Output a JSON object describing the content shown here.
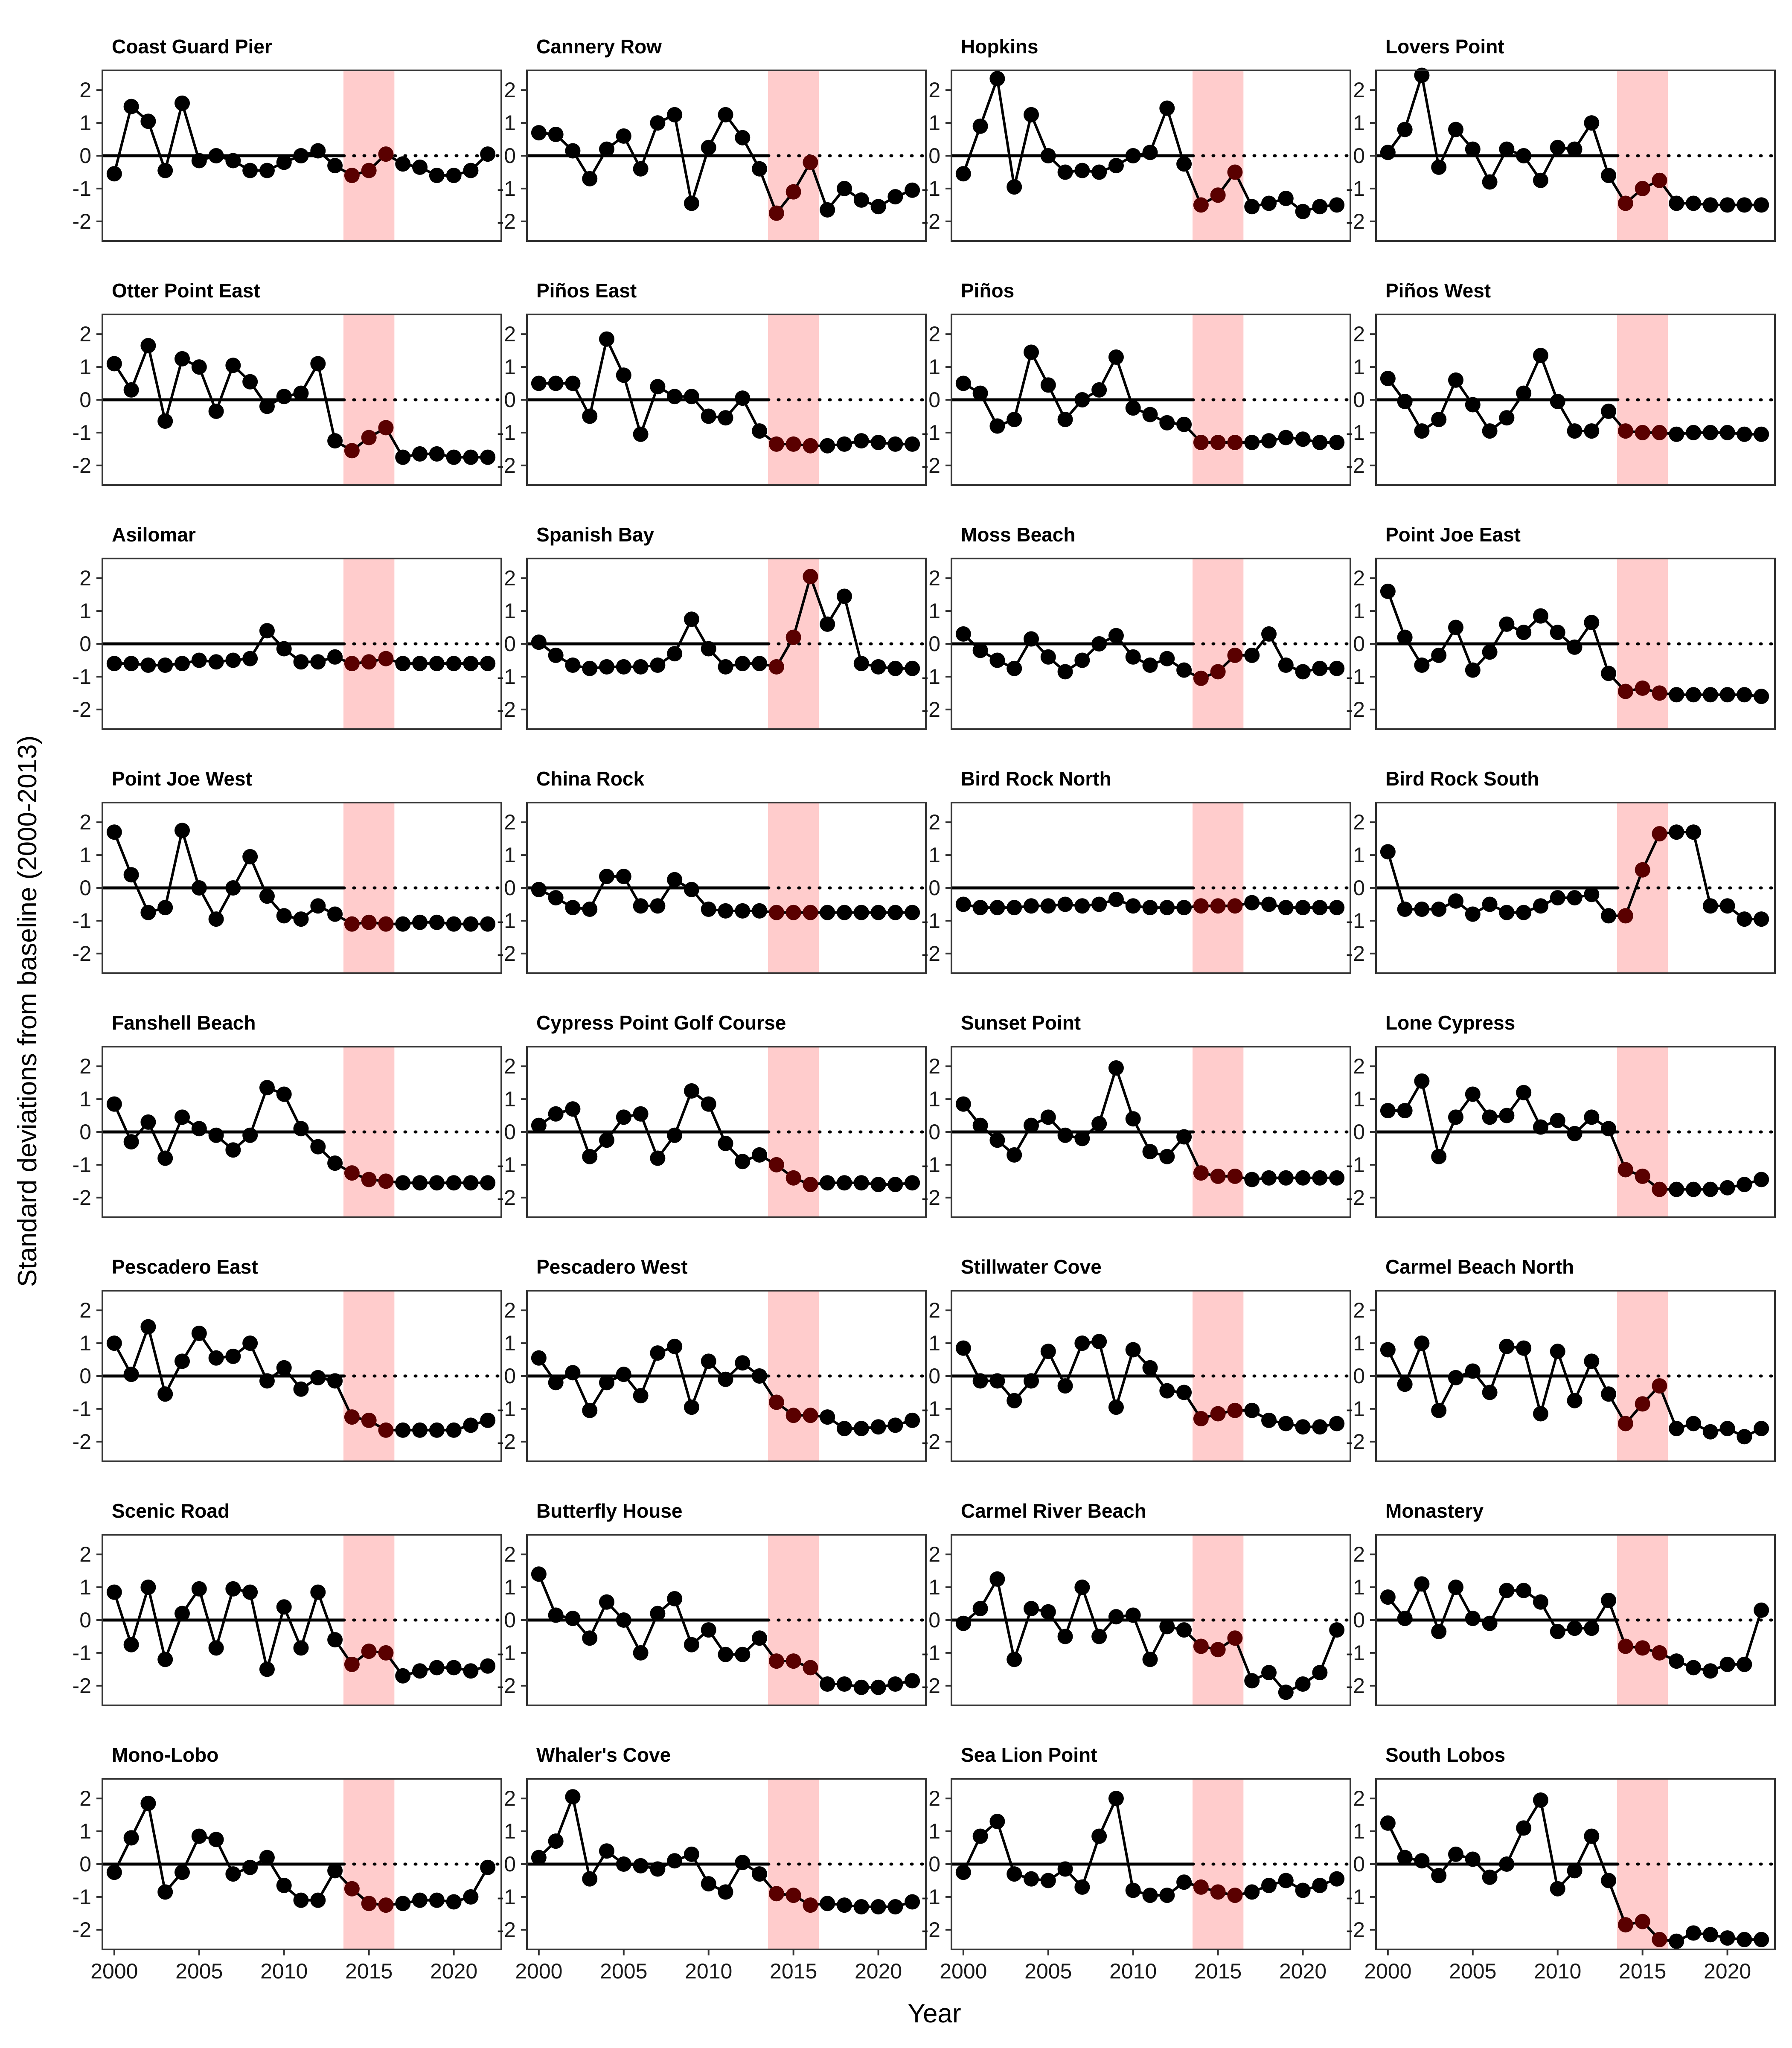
{
  "chart_data": {
    "type": "line",
    "xlabel": "Year",
    "ylabel": "Standard deviations from baseline (2000-2013)",
    "x_ticks": [
      2000,
      2005,
      2010,
      2015,
      2020
    ],
    "x_tick_labels": [
      "2000",
      "2005",
      "2010",
      "2015",
      "2020"
    ],
    "y_ticks": [
      -2,
      -1,
      0,
      1,
      2
    ],
    "y_tick_labels": [
      "-2",
      "-1",
      "0",
      "1",
      "2"
    ],
    "xlim": [
      1999.3,
      2022.8
    ],
    "ylim": [
      -2.6,
      2.6
    ],
    "years": [
      2000,
      2001,
      2002,
      2003,
      2004,
      2005,
      2006,
      2007,
      2008,
      2009,
      2010,
      2011,
      2012,
      2013,
      2014,
      2015,
      2016,
      2017,
      2018,
      2019,
      2020,
      2021,
      2022
    ],
    "highlight_span": [
      2013.5,
      2016.5
    ],
    "highlight_color": "#ffcccc",
    "point_color": "#000000",
    "highlight_point_color": "#5a0000",
    "baseline_value": 0,
    "baseline_solid_until": 2013.5,
    "grid": false,
    "layout": "8 rows x 4 columns facets",
    "series": [
      {
        "name": "Coast Guard Pier",
        "values": [
          -0.55,
          1.5,
          1.05,
          -0.45,
          1.6,
          -0.15,
          0.0,
          -0.15,
          -0.45,
          -0.45,
          -0.2,
          0.0,
          0.15,
          -0.3,
          -0.6,
          -0.45,
          0.05,
          -0.25,
          -0.35,
          -0.6,
          -0.6,
          -0.45,
          0.05
        ]
      },
      {
        "name": "Cannery Row",
        "values": [
          0.7,
          0.65,
          0.15,
          -0.7,
          0.2,
          0.6,
          -0.4,
          1.0,
          1.25,
          -1.45,
          0.25,
          1.25,
          0.55,
          -0.4,
          -1.75,
          -1.1,
          -0.2,
          -1.65,
          -1.0,
          -1.35,
          -1.55,
          -1.25,
          -1.05
        ]
      },
      {
        "name": "Hopkins",
        "values": [
          -0.55,
          0.9,
          2.35,
          -0.95,
          1.25,
          0.0,
          -0.5,
          -0.45,
          -0.5,
          -0.3,
          0.0,
          0.1,
          1.45,
          -0.25,
          -1.5,
          -1.2,
          -0.5,
          -1.55,
          -1.45,
          -1.3,
          -1.7,
          -1.55,
          -1.5
        ]
      },
      {
        "name": "Lovers Point",
        "values": [
          0.1,
          0.8,
          2.45,
          -0.35,
          0.8,
          0.2,
          -0.8,
          0.2,
          0.0,
          -0.75,
          0.25,
          0.2,
          1.0,
          -0.6,
          -1.45,
          -1.0,
          -0.75,
          -1.45,
          -1.45,
          -1.5,
          -1.5,
          -1.5,
          -1.5
        ]
      },
      {
        "name": "Otter Point East",
        "values": [
          1.1,
          0.3,
          1.65,
          -0.65,
          1.25,
          1.0,
          -0.35,
          1.05,
          0.55,
          -0.2,
          0.1,
          0.2,
          1.1,
          -1.25,
          -1.55,
          -1.15,
          -0.85,
          -1.75,
          -1.65,
          -1.65,
          -1.75,
          -1.75,
          -1.75
        ]
      },
      {
        "name": "Piños East",
        "values": [
          0.5,
          0.5,
          0.5,
          -0.5,
          1.85,
          0.75,
          -1.05,
          0.4,
          0.1,
          0.1,
          -0.5,
          -0.55,
          0.05,
          -0.95,
          -1.35,
          -1.35,
          -1.4,
          -1.4,
          -1.35,
          -1.25,
          -1.3,
          -1.35,
          -1.35
        ]
      },
      {
        "name": "Piños",
        "values": [
          0.5,
          0.2,
          -0.8,
          -0.6,
          1.45,
          0.45,
          -0.6,
          0.0,
          0.3,
          1.3,
          -0.25,
          -0.45,
          -0.7,
          -0.75,
          -1.3,
          -1.3,
          -1.3,
          -1.3,
          -1.25,
          -1.15,
          -1.2,
          -1.3,
          -1.3
        ]
      },
      {
        "name": "Piños West",
        "values": [
          0.65,
          -0.05,
          -0.95,
          -0.6,
          0.6,
          -0.15,
          -0.95,
          -0.55,
          0.2,
          1.35,
          -0.05,
          -0.95,
          -0.95,
          -0.35,
          -0.95,
          -1.0,
          -1.0,
          -1.05,
          -1.0,
          -1.0,
          -1.0,
          -1.05,
          -1.05
        ]
      },
      {
        "name": "Asilomar",
        "values": [
          -0.6,
          -0.6,
          -0.65,
          -0.65,
          -0.6,
          -0.5,
          -0.55,
          -0.5,
          -0.45,
          0.4,
          -0.15,
          -0.55,
          -0.55,
          -0.4,
          -0.6,
          -0.55,
          -0.45,
          -0.6,
          -0.6,
          -0.6,
          -0.6,
          -0.6,
          -0.6
        ]
      },
      {
        "name": "Spanish Bay",
        "values": [
          0.05,
          -0.35,
          -0.65,
          -0.75,
          -0.7,
          -0.7,
          -0.7,
          -0.65,
          -0.3,
          0.75,
          -0.15,
          -0.7,
          -0.6,
          -0.6,
          -0.7,
          0.2,
          2.05,
          0.6,
          1.45,
          -0.6,
          -0.7,
          -0.75,
          -0.75
        ]
      },
      {
        "name": "Moss Beach",
        "values": [
          0.3,
          -0.2,
          -0.5,
          -0.75,
          0.15,
          -0.4,
          -0.85,
          -0.5,
          0.0,
          0.25,
          -0.4,
          -0.65,
          -0.45,
          -0.8,
          -1.05,
          -0.85,
          -0.35,
          -0.35,
          0.3,
          -0.65,
          -0.85,
          -0.75,
          -0.75
        ]
      },
      {
        "name": "Point Joe East",
        "values": [
          1.6,
          0.2,
          -0.65,
          -0.35,
          0.5,
          -0.8,
          -0.25,
          0.6,
          0.35,
          0.85,
          0.35,
          -0.1,
          0.65,
          -0.9,
          -1.45,
          -1.35,
          -1.5,
          -1.55,
          -1.55,
          -1.55,
          -1.55,
          -1.55,
          -1.6
        ]
      },
      {
        "name": "Point Joe West",
        "values": [
          1.7,
          0.4,
          -0.75,
          -0.6,
          1.75,
          0.0,
          -0.95,
          0.0,
          0.95,
          -0.25,
          -0.85,
          -0.95,
          -0.55,
          -0.8,
          -1.1,
          -1.05,
          -1.1,
          -1.1,
          -1.05,
          -1.05,
          -1.1,
          -1.1,
          -1.1
        ]
      },
      {
        "name": "China Rock",
        "values": [
          -0.05,
          -0.3,
          -0.6,
          -0.65,
          0.35,
          0.35,
          -0.55,
          -0.55,
          0.25,
          -0.05,
          -0.65,
          -0.7,
          -0.7,
          -0.7,
          -0.75,
          -0.75,
          -0.75,
          -0.75,
          -0.75,
          -0.75,
          -0.75,
          -0.75,
          -0.75
        ]
      },
      {
        "name": "Bird Rock North",
        "values": [
          -0.5,
          -0.6,
          -0.6,
          -0.6,
          -0.55,
          -0.55,
          -0.5,
          -0.55,
          -0.5,
          -0.35,
          -0.55,
          -0.6,
          -0.6,
          -0.6,
          -0.55,
          -0.55,
          -0.55,
          -0.45,
          -0.5,
          -0.6,
          -0.6,
          -0.6,
          -0.6
        ]
      },
      {
        "name": "Bird Rock South",
        "values": [
          1.1,
          -0.65,
          -0.65,
          -0.65,
          -0.4,
          -0.8,
          -0.5,
          -0.75,
          -0.75,
          -0.55,
          -0.3,
          -0.3,
          -0.2,
          -0.85,
          -0.85,
          0.55,
          1.65,
          1.7,
          1.7,
          -0.55,
          -0.55,
          -0.95,
          -0.95
        ]
      },
      {
        "name": "Fanshell Beach",
        "values": [
          0.85,
          -0.3,
          0.3,
          -0.8,
          0.45,
          0.1,
          -0.1,
          -0.55,
          -0.1,
          1.35,
          1.15,
          0.1,
          -0.45,
          -0.95,
          -1.25,
          -1.45,
          -1.5,
          -1.55,
          -1.55,
          -1.55,
          -1.55,
          -1.55,
          -1.55
        ]
      },
      {
        "name": "Cypress Point Golf Course",
        "values": [
          0.2,
          0.55,
          0.7,
          -0.75,
          -0.25,
          0.45,
          0.55,
          -0.8,
          -0.1,
          1.25,
          0.85,
          -0.35,
          -0.9,
          -0.7,
          -1.0,
          -1.4,
          -1.6,
          -1.55,
          -1.55,
          -1.55,
          -1.6,
          -1.6,
          -1.55
        ]
      },
      {
        "name": "Sunset Point",
        "values": [
          0.85,
          0.2,
          -0.25,
          -0.7,
          0.2,
          0.45,
          -0.1,
          -0.2,
          0.25,
          1.95,
          0.4,
          -0.6,
          -0.75,
          -0.15,
          -1.25,
          -1.35,
          -1.35,
          -1.45,
          -1.4,
          -1.4,
          -1.4,
          -1.4,
          -1.4
        ]
      },
      {
        "name": "Lone Cypress",
        "values": [
          0.65,
          0.65,
          1.55,
          -0.75,
          0.45,
          1.15,
          0.45,
          0.5,
          1.2,
          0.15,
          0.35,
          -0.05,
          0.45,
          0.1,
          -1.15,
          -1.35,
          -1.75,
          -1.75,
          -1.75,
          -1.75,
          -1.7,
          -1.6,
          -1.45
        ]
      },
      {
        "name": "Pescadero East",
        "values": [
          1.0,
          0.05,
          1.5,
          -0.55,
          0.45,
          1.3,
          0.55,
          0.6,
          1.0,
          -0.15,
          0.25,
          -0.4,
          -0.05,
          -0.15,
          -1.25,
          -1.35,
          -1.65,
          -1.65,
          -1.65,
          -1.65,
          -1.65,
          -1.5,
          -1.35
        ]
      },
      {
        "name": "Pescadero West",
        "values": [
          0.55,
          -0.2,
          0.1,
          -1.05,
          -0.2,
          0.05,
          -0.6,
          0.7,
          0.9,
          -0.95,
          0.45,
          -0.1,
          0.4,
          0.0,
          -0.8,
          -1.2,
          -1.2,
          -1.25,
          -1.6,
          -1.6,
          -1.55,
          -1.5,
          -1.35
        ]
      },
      {
        "name": "Stillwater Cove",
        "values": [
          0.85,
          -0.15,
          -0.15,
          -0.75,
          -0.15,
          0.75,
          -0.3,
          1.0,
          1.05,
          -0.95,
          0.8,
          0.25,
          -0.45,
          -0.5,
          -1.3,
          -1.15,
          -1.05,
          -1.05,
          -1.35,
          -1.45,
          -1.55,
          -1.55,
          -1.45
        ]
      },
      {
        "name": "Carmel Beach North",
        "values": [
          0.8,
          -0.25,
          1.0,
          -1.05,
          -0.05,
          0.15,
          -0.5,
          0.9,
          0.85,
          -1.15,
          0.75,
          -0.75,
          0.45,
          -0.55,
          -1.45,
          -0.85,
          -0.3,
          -1.6,
          -1.45,
          -1.7,
          -1.6,
          -1.85,
          -1.6
        ]
      },
      {
        "name": "Scenic Road",
        "values": [
          0.85,
          -0.75,
          1.0,
          -1.2,
          0.2,
          0.95,
          -0.85,
          0.95,
          0.85,
          -1.5,
          0.4,
          -0.85,
          0.85,
          -0.6,
          -1.35,
          -0.95,
          -1.0,
          -1.7,
          -1.55,
          -1.45,
          -1.45,
          -1.55,
          -1.4
        ]
      },
      {
        "name": "Butterfly House",
        "values": [
          1.4,
          0.15,
          0.05,
          -0.55,
          0.55,
          0.0,
          -1.0,
          0.2,
          0.65,
          -0.75,
          -0.3,
          -1.05,
          -1.05,
          -0.55,
          -1.25,
          -1.25,
          -1.45,
          -1.95,
          -1.95,
          -2.05,
          -2.05,
          -1.95,
          -1.85
        ]
      },
      {
        "name": "Carmel River Beach",
        "values": [
          -0.1,
          0.35,
          1.25,
          -1.2,
          0.35,
          0.25,
          -0.5,
          1.0,
          -0.5,
          0.1,
          0.15,
          -1.2,
          -0.2,
          -0.3,
          -0.8,
          -0.9,
          -0.55,
          -1.85,
          -1.6,
          -2.2,
          -1.95,
          -1.6,
          -0.3
        ]
      },
      {
        "name": "Monastery",
        "values": [
          0.7,
          0.05,
          1.1,
          -0.35,
          1.0,
          0.05,
          -0.1,
          0.9,
          0.9,
          0.55,
          -0.35,
          -0.25,
          -0.25,
          0.6,
          -0.8,
          -0.85,
          -1.0,
          -1.25,
          -1.45,
          -1.55,
          -1.35,
          -1.35,
          0.3
        ]
      },
      {
        "name": "Mono-Lobo",
        "values": [
          -0.25,
          0.8,
          1.85,
          -0.85,
          -0.25,
          0.85,
          0.75,
          -0.3,
          -0.1,
          0.2,
          -0.65,
          -1.1,
          -1.1,
          -0.2,
          -0.75,
          -1.2,
          -1.25,
          -1.2,
          -1.1,
          -1.1,
          -1.15,
          -1.0,
          -0.1
        ]
      },
      {
        "name": "Whaler's Cove",
        "values": [
          0.2,
          0.7,
          2.05,
          -0.45,
          0.4,
          0.0,
          -0.05,
          -0.15,
          0.1,
          0.3,
          -0.6,
          -0.85,
          0.05,
          -0.3,
          -0.9,
          -0.95,
          -1.25,
          -1.2,
          -1.25,
          -1.3,
          -1.3,
          -1.3,
          -1.15
        ]
      },
      {
        "name": "Sea Lion Point",
        "values": [
          -0.25,
          0.85,
          1.3,
          -0.3,
          -0.45,
          -0.5,
          -0.15,
          -0.7,
          0.85,
          2.0,
          -0.8,
          -0.95,
          -0.95,
          -0.55,
          -0.7,
          -0.85,
          -0.95,
          -0.85,
          -0.65,
          -0.5,
          -0.8,
          -0.65,
          -0.45
        ]
      },
      {
        "name": "South Lobos",
        "values": [
          1.25,
          0.2,
          0.1,
          -0.35,
          0.3,
          0.15,
          -0.4,
          0.0,
          1.1,
          1.95,
          -0.75,
          -0.2,
          0.85,
          -0.5,
          -1.85,
          -1.75,
          -2.3,
          -2.35,
          -2.1,
          -2.15,
          -2.25,
          -2.3,
          -2.3
        ]
      }
    ]
  }
}
